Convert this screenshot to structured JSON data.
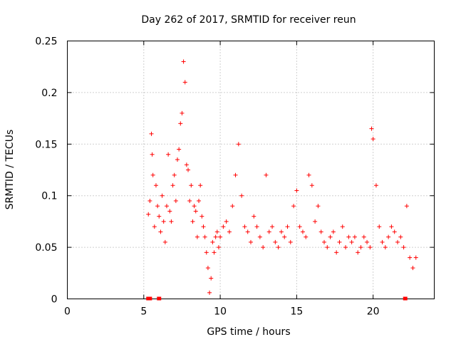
{
  "chart_data": {
    "type": "scatter",
    "title": "Day 262 of 2017, SRMTID for receiver reun",
    "xlabel": "GPS time / hours",
    "ylabel": "SRMTID / TECUs",
    "xlim": [
      0,
      24
    ],
    "ylim": [
      0,
      0.25
    ],
    "xticks": [
      0,
      5,
      10,
      15,
      20
    ],
    "yticks": [
      0,
      0.05,
      0.1,
      0.15,
      0.2,
      0.25
    ],
    "xtick_labels": [
      "0",
      "5",
      "10",
      "15",
      "20"
    ],
    "ytick_labels": [
      "0",
      "0.05",
      "0.1",
      "0.15",
      "0.2",
      "0.25"
    ],
    "grid": true,
    "series": [
      {
        "name": "SRMTID",
        "marker": "+",
        "color": "#ff0000",
        "x": [
          5.3,
          5.4,
          5.5,
          5.55,
          5.6,
          5.7,
          5.8,
          5.9,
          6.0,
          6.1,
          6.2,
          6.3,
          6.4,
          6.5,
          6.6,
          6.7,
          6.8,
          6.9,
          7.0,
          7.1,
          7.2,
          7.3,
          7.4,
          7.5,
          7.6,
          7.7,
          7.8,
          7.9,
          8.0,
          8.1,
          8.2,
          8.3,
          8.4,
          8.5,
          8.6,
          8.7,
          8.8,
          8.9,
          9.0,
          9.1,
          9.2,
          9.3,
          9.4,
          9.5,
          9.6,
          9.7,
          9.8,
          9.9,
          10.0,
          10.2,
          10.4,
          10.6,
          10.8,
          11.0,
          11.2,
          11.4,
          11.6,
          11.8,
          12.0,
          12.2,
          12.4,
          12.6,
          12.8,
          13.0,
          13.2,
          13.4,
          13.6,
          13.8,
          14.0,
          14.2,
          14.4,
          14.6,
          14.8,
          15.0,
          15.2,
          15.4,
          15.6,
          15.8,
          16.0,
          16.2,
          16.4,
          16.6,
          16.8,
          17.0,
          17.2,
          17.4,
          17.6,
          17.8,
          18.0,
          18.2,
          18.4,
          18.6,
          18.8,
          19.0,
          19.2,
          19.4,
          19.6,
          19.8,
          19.9,
          20.0,
          20.2,
          20.4,
          20.6,
          20.8,
          21.0,
          21.2,
          21.4,
          21.6,
          21.8,
          22.0,
          22.2,
          22.4,
          22.6,
          22.8
        ],
        "y": [
          0.082,
          0.095,
          0.16,
          0.14,
          0.12,
          0.07,
          0.11,
          0.09,
          0.08,
          0.065,
          0.1,
          0.075,
          0.055,
          0.09,
          0.14,
          0.085,
          0.075,
          0.11,
          0.12,
          0.095,
          0.135,
          0.145,
          0.17,
          0.18,
          0.23,
          0.21,
          0.13,
          0.125,
          0.095,
          0.11,
          0.075,
          0.09,
          0.085,
          0.06,
          0.095,
          0.11,
          0.08,
          0.07,
          0.06,
          0.045,
          0.03,
          0.006,
          0.02,
          0.055,
          0.045,
          0.06,
          0.065,
          0.05,
          0.06,
          0.07,
          0.075,
          0.065,
          0.09,
          0.12,
          0.15,
          0.1,
          0.07,
          0.065,
          0.055,
          0.08,
          0.07,
          0.06,
          0.05,
          0.12,
          0.065,
          0.07,
          0.055,
          0.05,
          0.065,
          0.06,
          0.07,
          0.055,
          0.09,
          0.105,
          0.07,
          0.065,
          0.06,
          0.12,
          0.11,
          0.075,
          0.09,
          0.065,
          0.055,
          0.05,
          0.06,
          0.065,
          0.045,
          0.055,
          0.07,
          0.05,
          0.06,
          0.055,
          0.06,
          0.045,
          0.05,
          0.06,
          0.055,
          0.05,
          0.165,
          0.155,
          0.11,
          0.07,
          0.055,
          0.05,
          0.06,
          0.07,
          0.065,
          0.055,
          0.06,
          0.05,
          0.09,
          0.04,
          0.03,
          0.04
        ]
      }
    ],
    "data_gaps_x": [
      5.3,
      5.4,
      6.0,
      22.1
    ]
  }
}
